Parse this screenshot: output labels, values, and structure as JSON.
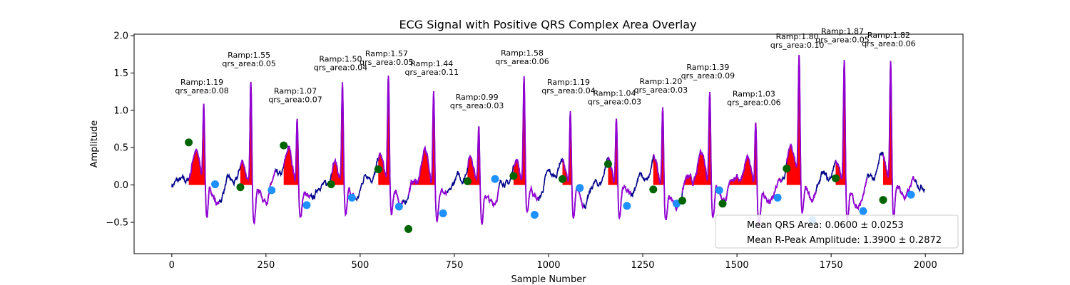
{
  "chart_data": {
    "type": "line",
    "title": "ECG Signal with Positive QRS Complex Area Overlay",
    "xlabel": "Sample Number",
    "ylabel": "Amplitude",
    "xlim": [
      -100,
      2100
    ],
    "ylim": [
      -0.92,
      2.02
    ],
    "xticks": [
      0,
      250,
      500,
      750,
      1000,
      1250,
      1500,
      1750,
      2000
    ],
    "yticks": [
      -0.5,
      0.0,
      0.5,
      1.0,
      1.5,
      2.0
    ],
    "xtick_labels": [
      "0",
      "250",
      "500",
      "750",
      "1000",
      "1250",
      "1500",
      "1750",
      "2000"
    ],
    "ytick_labels": [
      "−0.5",
      "0.0",
      "0.5",
      "1.0",
      "1.5",
      "2.0"
    ],
    "colors": {
      "signal": "#00008b",
      "qrs_segment": "#9400d3",
      "area_fill": "#ff0000",
      "q_point": "#006400",
      "s_point": "#1e90ff"
    },
    "beats": [
      {
        "r_x": 85,
        "r_amp": 1.19,
        "q_x": 45,
        "q_y": 0.57,
        "s_x": 115,
        "s_y": 0.01,
        "area": 0.08,
        "label_ramp": "Ramp:1.19",
        "label_area": "qrs_area:0.08"
      },
      {
        "r_x": 210,
        "r_amp": 1.55,
        "q_x": 182,
        "q_y": -0.03,
        "s_x": 265,
        "s_y": -0.07,
        "area": 0.05,
        "label_ramp": "Ramp:1.55",
        "label_area": "qrs_area:0.05"
      },
      {
        "r_x": 333,
        "r_amp": 1.07,
        "q_x": 297,
        "q_y": 0.53,
        "s_x": 358,
        "s_y": -0.27,
        "area": 0.07,
        "label_ramp": "Ramp:1.07",
        "label_area": "qrs_area:0.07"
      },
      {
        "r_x": 453,
        "r_amp": 1.5,
        "q_x": 423,
        "q_y": 0.01,
        "s_x": 478,
        "s_y": -0.17,
        "area": 0.04,
        "label_ramp": "Ramp:1.50",
        "label_area": "qrs_area:0.04"
      },
      {
        "r_x": 575,
        "r_amp": 1.57,
        "q_x": 548,
        "q_y": 0.21,
        "s_x": 603,
        "s_y": -0.29,
        "area": 0.05,
        "label_ramp": "Ramp:1.57",
        "label_area": "qrs_area:0.05"
      },
      {
        "r_x": 695,
        "r_amp": 1.44,
        "q_x": 628,
        "q_y": -0.59,
        "s_x": 720,
        "s_y": -0.38,
        "area": 0.11,
        "label_ramp": "Ramp:1.44",
        "label_area": "qrs_area:0.11"
      },
      {
        "r_x": 815,
        "r_amp": 0.99,
        "q_x": 785,
        "q_y": 0.05,
        "s_x": 858,
        "s_y": 0.08,
        "area": 0.03,
        "label_ramp": "Ramp:0.99",
        "label_area": "qrs_area:0.03"
      },
      {
        "r_x": 935,
        "r_amp": 1.58,
        "q_x": 907,
        "q_y": 0.12,
        "s_x": 963,
        "s_y": -0.4,
        "area": 0.06,
        "label_ramp": "Ramp:1.58",
        "label_area": "qrs_area:0.06"
      },
      {
        "r_x": 1058,
        "r_amp": 1.19,
        "q_x": 1037,
        "q_y": 0.08,
        "s_x": 1083,
        "s_y": -0.04,
        "area": 0.04,
        "label_ramp": "Ramp:1.19",
        "label_area": "qrs_area:0.04"
      },
      {
        "r_x": 1180,
        "r_amp": 1.04,
        "q_x": 1158,
        "q_y": 0.28,
        "s_x": 1208,
        "s_y": -0.28,
        "area": 0.03,
        "label_ramp": "Ramp:1.04",
        "label_area": "qrs_area:0.03"
      },
      {
        "r_x": 1303,
        "r_amp": 1.2,
        "q_x": 1278,
        "q_y": -0.06,
        "s_x": 1340,
        "s_y": -0.25,
        "area": 0.03,
        "label_ramp": "Ramp:1.20",
        "label_area": "qrs_area:0.03"
      },
      {
        "r_x": 1428,
        "r_amp": 1.39,
        "q_x": 1355,
        "q_y": -0.21,
        "s_x": 1453,
        "s_y": -0.07,
        "area": 0.09,
        "label_ramp": "Ramp:1.39",
        "label_area": "qrs_area:0.09"
      },
      {
        "r_x": 1550,
        "r_amp": 1.03,
        "q_x": 1462,
        "q_y": -0.25,
        "s_x": 1608,
        "s_y": -0.17,
        "area": 0.06,
        "label_ramp": "Ramp:1.03",
        "label_area": "qrs_area:0.06"
      },
      {
        "r_x": 1665,
        "r_amp": 1.8,
        "q_x": 1632,
        "q_y": 0.22,
        "s_x": 1700,
        "s_y": -0.47,
        "area": 0.1,
        "label_ramp": "Ramp:1.80",
        "label_area": "qrs_area:0.10"
      },
      {
        "r_x": 1785,
        "r_amp": 1.87,
        "q_x": 1762,
        "q_y": 0.09,
        "s_x": 1835,
        "s_y": -0.35,
        "area": 0.05,
        "label_ramp": "Ramp:1.87",
        "label_area": "qrs_area:0.05"
      },
      {
        "r_x": 1908,
        "r_amp": 1.82,
        "q_x": 1888,
        "q_y": -0.2,
        "s_x": 1962,
        "s_y": -0.13,
        "area": 0.06,
        "label_ramp": "Ramp:1.82",
        "label_area": "qrs_area:0.06"
      }
    ],
    "legend": {
      "placement": "lower right",
      "entries": [
        "Mean QRS Area: 0.0600 ± 0.0253",
        "Mean R-Peak Amplitude: 1.3900 ± 0.2872"
      ]
    }
  }
}
